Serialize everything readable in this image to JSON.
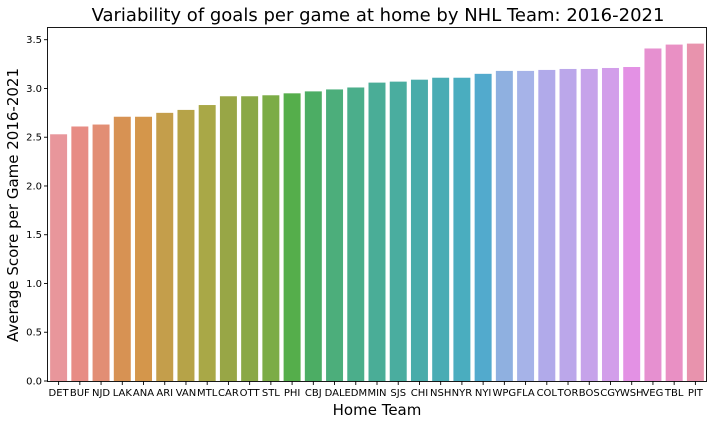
{
  "chart_data": {
    "type": "bar",
    "title": "Variability of goals per game at home by NHL Team: 2016-2021",
    "xlabel": "Home Team",
    "ylabel": "Average Score per Game 2016-2021",
    "ylim": [
      0,
      3.62
    ],
    "yticks": [
      "0.0",
      "0.5",
      "1.0",
      "1.5",
      "2.0",
      "2.5",
      "3.0",
      "3.5"
    ],
    "grid": false,
    "categories": [
      "DET",
      "BUF",
      "NJD",
      "LAK",
      "ANA",
      "ARI",
      "VAN",
      "MTL",
      "CAR",
      "OTT",
      "STL",
      "PHI",
      "CBJ",
      "DAL",
      "EDM",
      "MIN",
      "SJS",
      "CHI",
      "NSH",
      "NYR",
      "NYI",
      "WPG",
      "FLA",
      "COL",
      "TOR",
      "BOS",
      "CGY",
      "WSH",
      "VEG",
      "TBL",
      "PIT"
    ],
    "values": [
      2.53,
      2.61,
      2.63,
      2.71,
      2.71,
      2.75,
      2.78,
      2.83,
      2.92,
      2.92,
      2.93,
      2.95,
      2.97,
      2.99,
      3.01,
      3.06,
      3.07,
      3.09,
      3.11,
      3.11,
      3.15,
      3.18,
      3.18,
      3.19,
      3.2,
      3.2,
      3.21,
      3.22,
      3.41,
      3.45,
      3.46
    ],
    "colors": [
      "#e8969b",
      "#e78c84",
      "#e28e74",
      "#d79253",
      "#d4964b",
      "#c49e4b",
      "#b6a348",
      "#a9a847",
      "#98a646",
      "#8aa846",
      "#7cac46",
      "#55ae4b",
      "#4cad64",
      "#4cae7b",
      "#4bae8b",
      "#4aad97",
      "#4aad9f",
      "#49acaa",
      "#49acb4",
      "#4aadbf",
      "#52aacd",
      "#8fb0e0",
      "#a6b3e8",
      "#b1aaea",
      "#bba7ea",
      "#c6a3ea",
      "#d29eea",
      "#e391e4",
      "#e690d0",
      "#e990c4",
      "#e893ad"
    ]
  }
}
